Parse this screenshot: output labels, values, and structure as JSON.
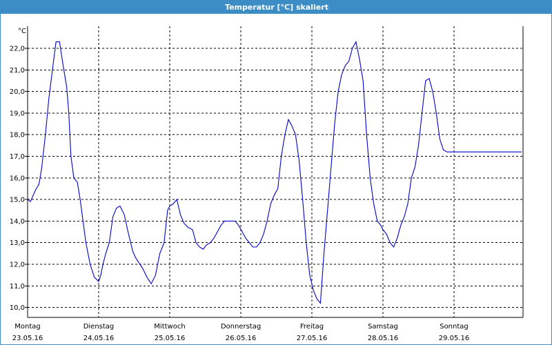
{
  "title": "Temperatur [°C] skaliert",
  "chart_data": {
    "type": "line",
    "title": "Temperatur [°C] skaliert",
    "ylabel": "°C",
    "ylim": [
      9.5,
      23.0
    ],
    "yticks": [
      10.0,
      11.0,
      12.0,
      13.0,
      14.0,
      15.0,
      16.0,
      17.0,
      18.0,
      19.0,
      20.0,
      21.0,
      22.0
    ],
    "ytick_labels": [
      "10,0",
      "11,0",
      "12,0",
      "13,0",
      "14,0",
      "15,0",
      "16,0",
      "17,0",
      "18,0",
      "19,0",
      "20,0",
      "21,0",
      "22,0"
    ],
    "xlim": [
      0,
      7
    ],
    "day_labels": [
      {
        "day": "Montag",
        "date": "23.05.16"
      },
      {
        "day": "Dienstag",
        "date": "24.05.16"
      },
      {
        "day": "Mittwoch",
        "date": "25.05.16"
      },
      {
        "day": "Donnerstag",
        "date": "26.05.16"
      },
      {
        "day": "Freitag",
        "date": "27.05.16"
      },
      {
        "day": "Samstag",
        "date": "28.05.16"
      },
      {
        "day": "Sonntag",
        "date": "29.05.16"
      }
    ],
    "grid": true,
    "line_color": "#0000cc",
    "series": [
      {
        "x": [
          0.0,
          0.04,
          0.08,
          0.12,
          0.16,
          0.2,
          0.25,
          0.3,
          0.35,
          0.4,
          0.45,
          0.5,
          0.55,
          0.58,
          0.61,
          0.65,
          0.7,
          0.74,
          0.78,
          0.82,
          0.88,
          0.94,
          1.0,
          1.03,
          1.06,
          1.1,
          1.15,
          1.2,
          1.25,
          1.3,
          1.36,
          1.42,
          1.48,
          1.52,
          1.56,
          1.62,
          1.68,
          1.74,
          1.8,
          1.86,
          1.92,
          1.97,
          2.0,
          2.05,
          2.1,
          2.15,
          2.2,
          2.26,
          2.32,
          2.37,
          2.42,
          2.47,
          2.52,
          2.57,
          2.62,
          2.67,
          2.72,
          2.77,
          2.82,
          2.87,
          2.92,
          2.97,
          3.02,
          3.07,
          3.12,
          3.17,
          3.22,
          3.27,
          3.32,
          3.37,
          3.42,
          3.47,
          3.52,
          3.57,
          3.62,
          3.67,
          3.72,
          3.77,
          3.82,
          3.87,
          3.92,
          3.97,
          4.02,
          4.07,
          4.12,
          4.17,
          4.22,
          4.27,
          4.32,
          4.37,
          4.42,
          4.47,
          4.52,
          4.57,
          4.62,
          4.67,
          4.72,
          4.77,
          4.82,
          4.87,
          4.92,
          4.97,
          5.0,
          5.05,
          5.1,
          5.15,
          5.2,
          5.25,
          5.3,
          5.35,
          5.4,
          5.45,
          5.5,
          5.55,
          5.6,
          5.65,
          5.7,
          5.75,
          5.8,
          5.85,
          5.9,
          5.95,
          6.0,
          6.05,
          6.1,
          6.15,
          6.2,
          6.25,
          6.3,
          6.35,
          6.4,
          6.45,
          6.5,
          6.55,
          6.6,
          6.65,
          6.7,
          6.75,
          6.8,
          6.85,
          6.9,
          6.95,
          7.0
        ],
        "values": [
          15.0,
          14.9,
          15.2,
          15.5,
          15.7,
          16.5,
          18.0,
          19.7,
          21.0,
          22.3,
          22.3,
          21.2,
          20.2,
          19.0,
          17.0,
          16.0,
          15.8,
          15.0,
          14.0,
          13.0,
          12.0,
          11.4,
          11.2,
          11.5,
          12.0,
          12.5,
          13.0,
          14.2,
          14.6,
          14.7,
          14.3,
          13.4,
          12.6,
          12.3,
          12.1,
          11.8,
          11.4,
          11.1,
          11.5,
          12.5,
          13.0,
          14.5,
          14.7,
          14.8,
          15.0,
          14.3,
          13.9,
          13.7,
          13.6,
          13.0,
          12.8,
          12.7,
          12.9,
          13.0,
          13.2,
          13.5,
          13.8,
          14.0,
          14.0,
          14.0,
          14.0,
          13.8,
          13.5,
          13.2,
          13.0,
          12.8,
          12.8,
          13.0,
          13.4,
          14.0,
          14.8,
          15.2,
          15.5,
          17.0,
          18.0,
          18.7,
          18.4,
          18.0,
          16.8,
          15.0,
          13.0,
          11.5,
          10.8,
          10.4,
          10.2,
          12.5,
          14.5,
          16.5,
          18.5,
          20.0,
          20.8,
          21.2,
          21.4,
          22.0,
          22.3,
          21.5,
          20.5,
          18.0,
          16.0,
          14.8,
          14.0,
          13.8,
          13.6,
          13.4,
          13.0,
          12.8,
          13.2,
          13.8,
          14.2,
          14.8,
          16.0,
          16.5,
          17.5,
          19.0,
          20.5,
          20.6,
          20.0,
          19.0,
          17.8,
          17.3,
          17.2,
          17.2,
          17.2,
          17.2,
          17.2,
          17.2,
          17.2,
          17.2,
          17.2,
          17.2,
          17.2,
          17.2,
          17.2,
          17.2,
          17.2,
          17.2,
          17.2,
          17.2,
          17.2,
          17.2,
          17.2,
          17.2,
          17.2
        ]
      }
    ]
  }
}
